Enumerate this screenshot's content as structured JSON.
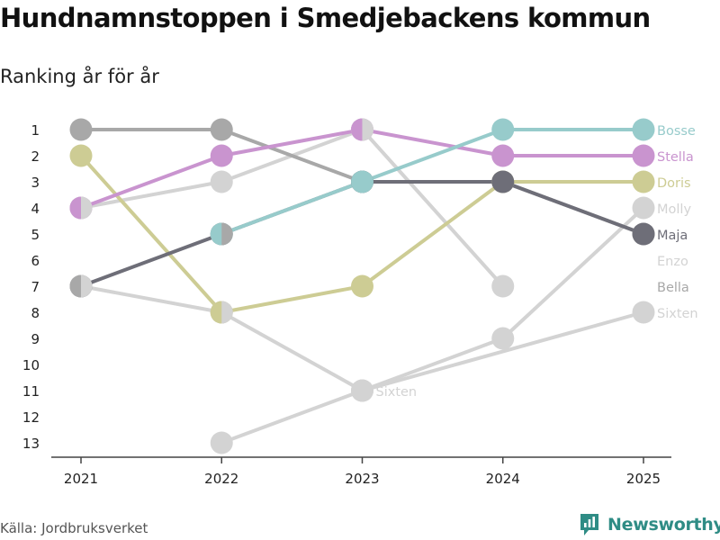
{
  "header": {
    "title": "Hundnamnstoppen i Smedjebackens kommun",
    "subtitle": "Ranking år för år"
  },
  "footer": {
    "source": "Källa: Jordbruksverket",
    "brand": "Newsworthy"
  },
  "colors": {
    "Bosse": "#97cbcb",
    "Stella": "#c994cf",
    "Doris": "#cdcc94",
    "Maja": "#6e6e78",
    "Other": "#d3d3d3",
    "Gray": "#a8a8a8",
    "axis": "#444444",
    "brand": "#2f8c85"
  },
  "chart_data": {
    "type": "line",
    "title": "Hundnamnstoppen i Smedjebackens kommun",
    "subtitle": "Ranking år för år",
    "x": [
      "2021",
      "2022",
      "2023",
      "2024",
      "2025"
    ],
    "y_ticks": [
      1,
      2,
      3,
      4,
      5,
      6,
      7,
      8,
      9,
      10,
      11,
      12,
      13
    ],
    "ylim": [
      1,
      13
    ],
    "y_inverted": true,
    "series": [
      {
        "name": "Molly",
        "values": [
          7,
          8,
          11,
          9,
          4
        ],
        "color_key": "Other"
      },
      {
        "name": "Enzo",
        "values": [
          4,
          3,
          1,
          7,
          null
        ],
        "color_key": "Other"
      },
      {
        "name": "Bella",
        "values": [
          1,
          1,
          3,
          3,
          5
        ],
        "color_key": "Gray"
      },
      {
        "name": "Sixten",
        "values": [
          null,
          13,
          11,
          null,
          8
        ],
        "color_key": "Other",
        "inline_label": {
          "x": "2023",
          "y": 11,
          "text": "Sixten"
        }
      },
      {
        "name": "Doris",
        "values": [
          2,
          8,
          7,
          3,
          3
        ],
        "color_key": "Doris"
      },
      {
        "name": "Maja",
        "values": [
          7,
          5,
          3,
          3,
          5
        ],
        "color_key": "Maja"
      },
      {
        "name": "Stella",
        "values": [
          4,
          2,
          1,
          2,
          2
        ],
        "color_key": "Stella"
      },
      {
        "name": "Bosse",
        "values": [
          null,
          5,
          3,
          1,
          1
        ],
        "color_key": "Bosse"
      }
    ],
    "shared_markers": [
      {
        "x": "2021",
        "y": 4,
        "left": "Stella",
        "right": "Other"
      },
      {
        "x": "2021",
        "y": 7,
        "left": "Gray",
        "right": "Other"
      },
      {
        "x": "2022",
        "y": 5,
        "left": "Bosse",
        "right": "Gray"
      },
      {
        "x": "2022",
        "y": 8,
        "left": "Doris",
        "right": "Other"
      },
      {
        "x": "2023",
        "y": 1,
        "left": "Stella",
        "right": "Other"
      }
    ],
    "end_labels": [
      {
        "text": "Bosse",
        "y": 1,
        "color_key": "Bosse"
      },
      {
        "text": "Stella",
        "y": 2,
        "color_key": "Stella"
      },
      {
        "text": "Doris",
        "y": 3,
        "color_key": "Doris"
      },
      {
        "text": "Molly",
        "y": 4,
        "color_key": "Other"
      },
      {
        "text": "Maja",
        "y": 5,
        "color_key": "Maja"
      },
      {
        "text": "Enzo",
        "y": 6,
        "color_key": "Other"
      },
      {
        "text": "Bella",
        "y": 7,
        "color_key": "Gray"
      },
      {
        "text": "Sixten",
        "y": 8,
        "color_key": "Other"
      }
    ]
  }
}
